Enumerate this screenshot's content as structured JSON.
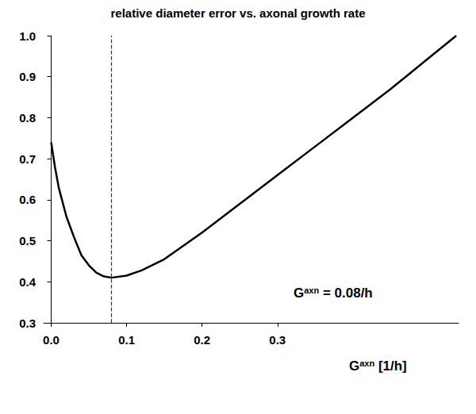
{
  "chart_data": {
    "type": "line",
    "title": "relative diameter error vs. axonal growth rate",
    "x_label": {
      "symbol": "G",
      "superscript": "axn",
      "text": "[1/h]"
    },
    "annotation": {
      "symbol": "G",
      "superscript": "axn",
      "text": "= 0.08/h"
    },
    "vline": 0.08,
    "vline_style": "dashed",
    "x": [
      0,
      0.005,
      0.01,
      0.02,
      0.03,
      0.04,
      0.05,
      0.06,
      0.07,
      0.08,
      0.1,
      0.12,
      0.15,
      0.2,
      0.25,
      0.3,
      0.35,
      0.4,
      0.45,
      0.5,
      0.537
    ],
    "values": [
      0.74,
      0.68,
      0.63,
      0.56,
      0.51,
      0.465,
      0.44,
      0.422,
      0.413,
      0.41,
      0.415,
      0.428,
      0.455,
      0.52,
      0.59,
      0.66,
      0.73,
      0.8,
      0.87,
      0.945,
      1.0
    ],
    "color": "#000000",
    "line_style": "solid",
    "xlim": [
      -0.01,
      0.54
    ],
    "ylim": [
      0.3,
      1.0
    ],
    "xticks": [
      {
        "value": 0,
        "label": "0.0"
      },
      0.1,
      0.2,
      0.3
    ],
    "yticks": [
      0.3,
      0.4,
      0.5,
      0.6,
      0.7,
      0.8,
      0.9,
      {
        "value": 1,
        "label": "1.0"
      }
    ],
    "grid": false
  }
}
